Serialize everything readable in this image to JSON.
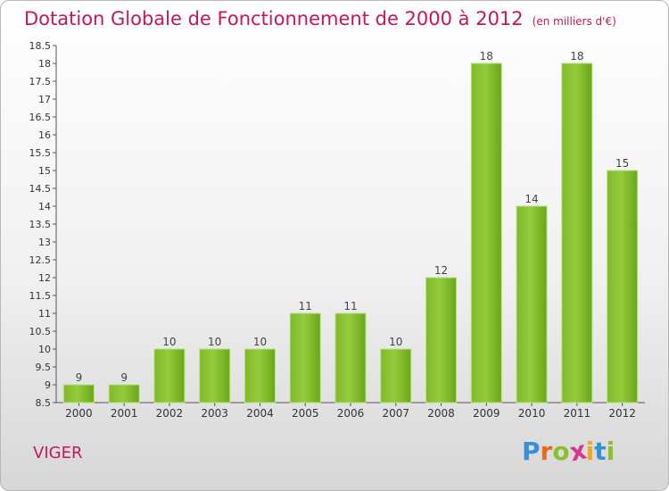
{
  "header": {
    "title": "Dotation Globale de Fonctionnement de 2000 à 2012",
    "unit": "(en milliers d'€)"
  },
  "footer": {
    "commune": "VIGER",
    "logo_letters": [
      "P",
      "r",
      "o",
      "x",
      "i",
      "t",
      "i"
    ],
    "logo_colors": [
      "#3a8fd0",
      "#e8681d",
      "#8bbf2e",
      "#d9368b",
      "#f2a623",
      "#3a8fd0",
      "#8bbf2e"
    ]
  },
  "chart_data": {
    "type": "bar",
    "categories": [
      "2000",
      "2001",
      "2002",
      "2003",
      "2004",
      "2005",
      "2006",
      "2007",
      "2008",
      "2009",
      "2010",
      "2011",
      "2012"
    ],
    "values": [
      9,
      9,
      10,
      10,
      10,
      11,
      11,
      10,
      12,
      18,
      14,
      18,
      15
    ],
    "data_labels": [
      "9",
      "9",
      "10",
      "10",
      "10",
      "11",
      "11",
      "10",
      "12",
      "18",
      "14",
      "18",
      "15"
    ],
    "ylim": [
      8.5,
      18.5
    ],
    "yticks": [
      "8.5",
      "9",
      "9.5",
      "10",
      "10.5",
      "11",
      "11.5",
      "12",
      "12.5",
      "13",
      "13.5",
      "14",
      "14.5",
      "15",
      "15.5",
      "16",
      "16.5",
      "17",
      "17.5",
      "18",
      "18.5"
    ],
    "grid": false,
    "bar_color_top": "#9fd14a",
    "bar_color_bottom": "#5f9c14"
  }
}
